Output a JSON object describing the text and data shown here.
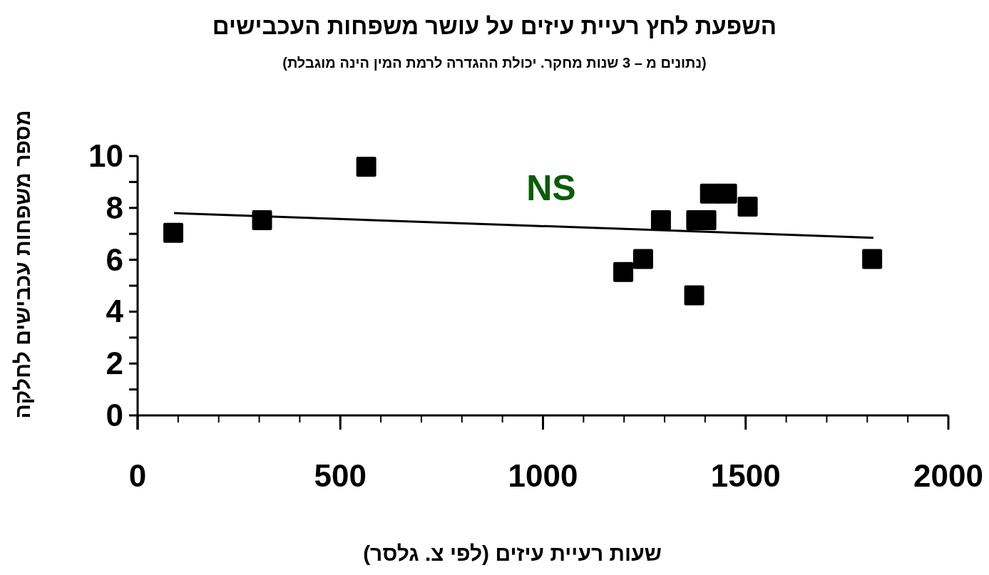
{
  "chart_data": {
    "type": "scatter",
    "title": "השפעת לחץ רעיית עיזים על עושר משפחות העכבישים",
    "subtitle": "(נתונים מ – 3 שנות מחקר. יכולת ההגדרה לרמת המין הינה מוגבלת)",
    "xlabel": "שעות רעיית עיזים (לפי צ. גלסר)",
    "ylabel": "מספר משפחות עכבישים לחלקה",
    "series": [
      {
        "color": "#000000",
        "marker": "square",
        "x": [
          88,
          307,
          564,
          1198,
          1247,
          1291,
          1373,
          1378,
          1403,
          1412,
          1454,
          1505,
          1812
        ],
        "values": [
          7.04,
          7.53,
          9.59,
          5.53,
          6.03,
          7.53,
          4.63,
          7.53,
          7.53,
          8.55,
          8.55,
          8.05,
          6.03
        ]
      },
      {
        "type": "line",
        "color": "#000000",
        "marker": "none",
        "x": [
          90,
          1815
        ],
        "values": [
          7.8,
          6.85
        ]
      }
    ],
    "annotations": [
      "NS"
    ],
    "xlim": [
      0,
      2000
    ],
    "xticks": [
      0,
      500,
      1000,
      1500,
      2000
    ],
    "ylim": [
      0,
      10
    ],
    "yticks": [
      0,
      2,
      4,
      6,
      8,
      10
    ],
    "grid": false
  }
}
